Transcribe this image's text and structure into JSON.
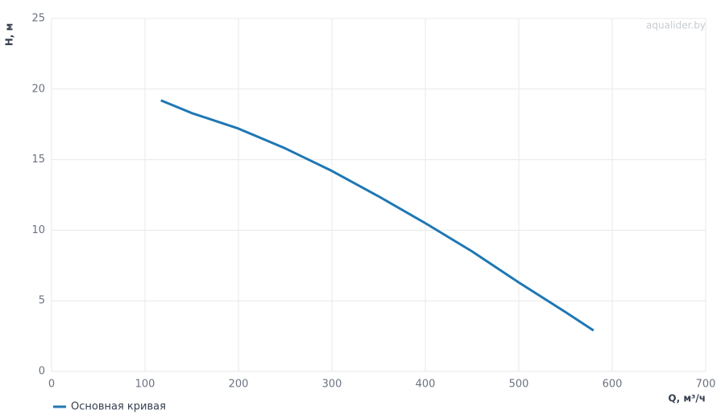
{
  "chart_data": {
    "type": "line",
    "x_label": "Q, м³/ч",
    "y_label": "H, м",
    "watermark": "aqualider.by",
    "x": [
      117,
      150,
      200,
      250,
      300,
      350,
      400,
      450,
      500,
      550,
      580
    ],
    "series": [
      {
        "name": "Основная кривая",
        "color": "#1f77b4",
        "values": [
          19.2,
          18.3,
          17.2,
          15.8,
          14.2,
          12.4,
          10.5,
          8.5,
          6.3,
          4.2,
          2.9
        ]
      }
    ],
    "xlim": [
      0,
      700
    ],
    "xticks": [
      0,
      100,
      200,
      300,
      400,
      500,
      600,
      700
    ],
    "ylim": [
      0,
      25
    ],
    "yticks": [
      0,
      5,
      10,
      15,
      20,
      25
    ],
    "grid": true,
    "legend": "bottom-left"
  }
}
